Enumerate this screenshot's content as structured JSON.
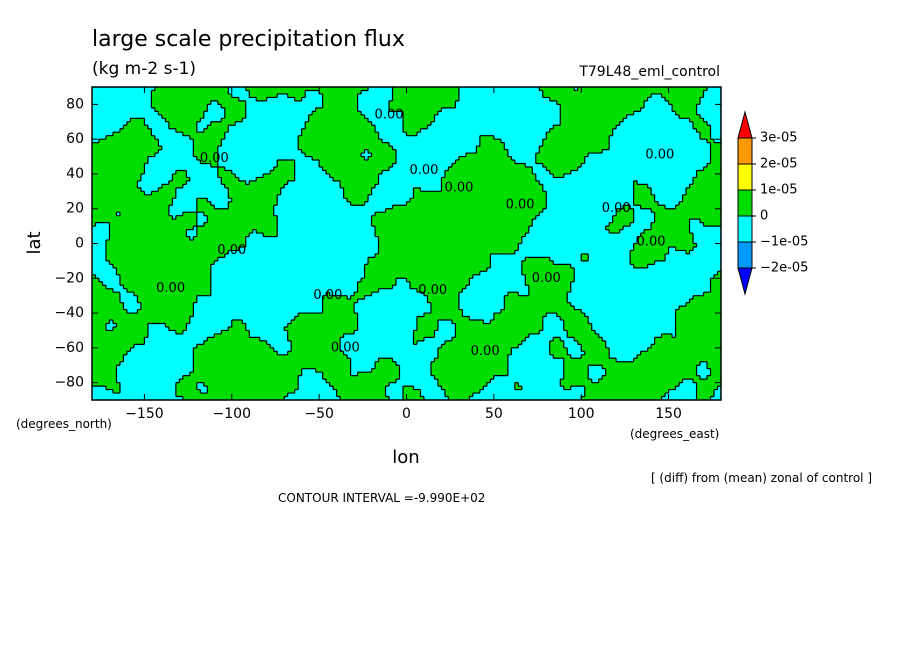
{
  "chart_data": {
    "type": "heatmap",
    "title": "large scale precipitation flux",
    "subtitle": "(kg m-2 s-1)",
    "run_label": "T79L48_eml_control",
    "xlabel": "lon",
    "ylabel": "lat",
    "x_unit_label": "(degrees_east)",
    "y_unit_label": "(degrees_north)",
    "xlim": [
      -180,
      180
    ],
    "ylim": [
      -90,
      90
    ],
    "xticks": [
      -150,
      -100,
      -50,
      0,
      50,
      100,
      150
    ],
    "xtick_labels": [
      "−150",
      "−100",
      "−50",
      "0",
      "50",
      "100",
      "150"
    ],
    "yticks": [
      80,
      60,
      40,
      20,
      0,
      -20,
      -40,
      -60,
      -80
    ],
    "ytick_labels": [
      "80",
      "60",
      "40",
      "20",
      "0",
      "−20",
      "−40",
      "−60",
      "−80"
    ],
    "note": "[ (diff) from (mean) zonal of control ]",
    "contour_interval_text": "CONTOUR INTERVAL =-9.990E+02",
    "contour_label": "0.00",
    "contour_label_positions": [
      {
        "lon": -10,
        "lat": 74
      },
      {
        "lon": -110,
        "lat": 49
      },
      {
        "lon": 10,
        "lat": 42
      },
      {
        "lon": 145,
        "lat": 51
      },
      {
        "lon": 30,
        "lat": 32
      },
      {
        "lon": 65,
        "lat": 22
      },
      {
        "lon": 120,
        "lat": 20
      },
      {
        "lon": 140,
        "lat": 1
      },
      {
        "lon": -100,
        "lat": -4
      },
      {
        "lon": 80,
        "lat": -20
      },
      {
        "lon": -135,
        "lat": -26
      },
      {
        "lon": 15,
        "lat": -27
      },
      {
        "lon": -45,
        "lat": -30
      },
      {
        "lon": -35,
        "lat": -60
      },
      {
        "lon": 45,
        "lat": -62
      }
    ],
    "color_levels": [
      {
        "label": "3e-05",
        "color": "#ff0000"
      },
      {
        "label": "2e-05",
        "color": "#ff9900"
      },
      {
        "label": "1e-05",
        "color": "#ffff00"
      },
      {
        "label": "0",
        "color": "#00dd00"
      },
      {
        "label": "−1e-05",
        "color": "#00ffff"
      },
      {
        "label": "−2e-05",
        "color": "#0099ff"
      },
      {
        "label": "",
        "color": "#0000ff"
      }
    ],
    "field_colors": {
      "positive": "#00dd00",
      "negative": "#00ffff",
      "contour": "#000000"
    },
    "grid": false,
    "legend_placement": "right"
  }
}
